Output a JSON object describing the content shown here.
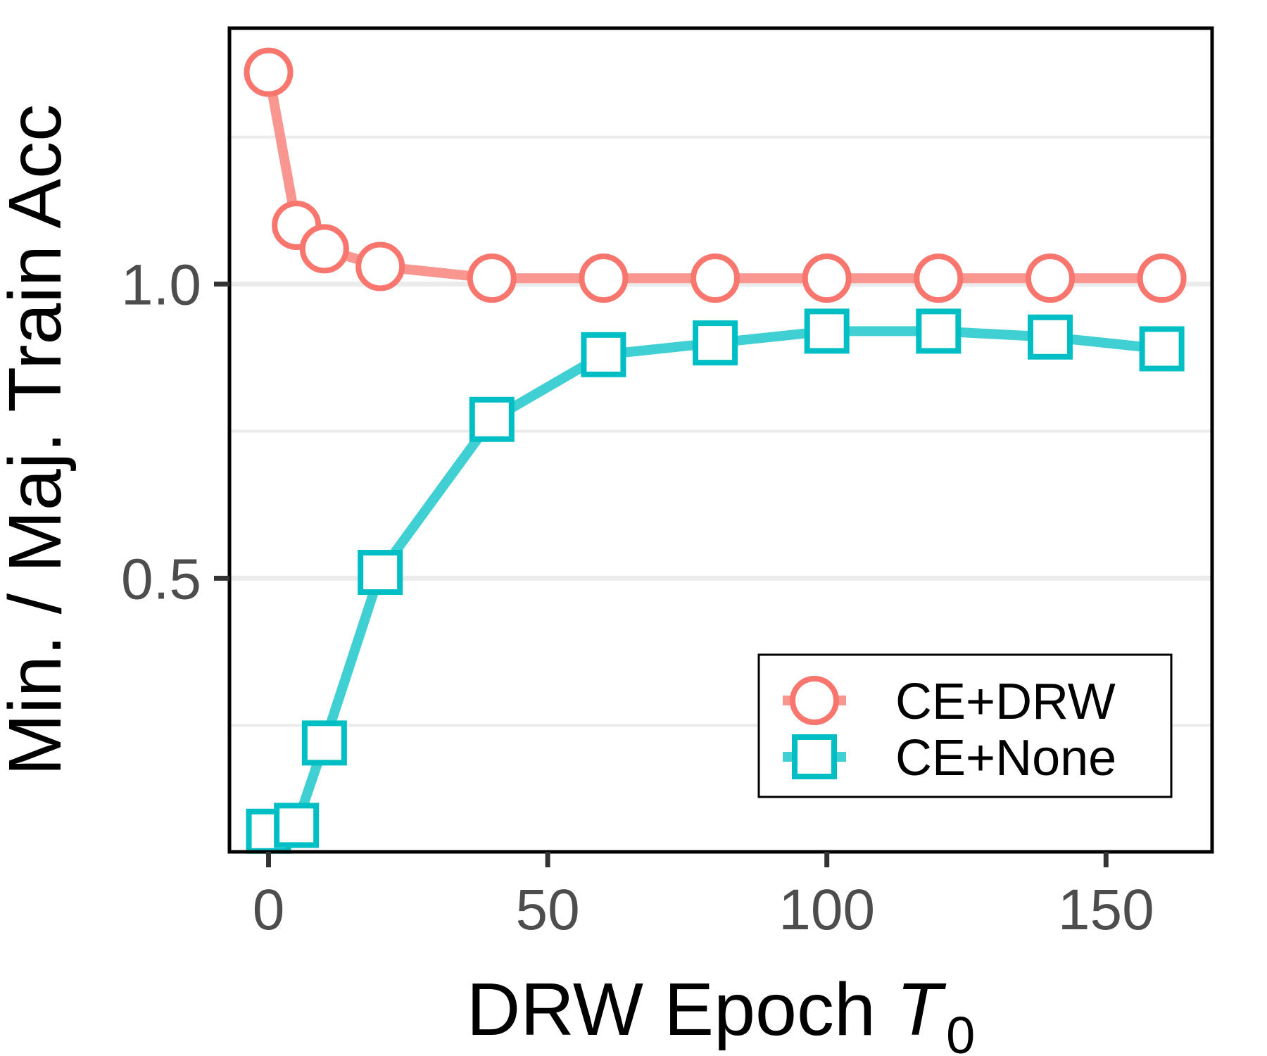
{
  "chart_data": {
    "type": "line",
    "xlabel": "DRW Epoch",
    "xlabel_italic": "T",
    "xlabel_subscript": "0",
    "ylabel": "Min. / Maj. Train Acc",
    "xlim": [
      -7,
      169
    ],
    "ylim": [
      0.035,
      1.435
    ],
    "x_ticks": [
      0,
      50,
      100,
      150
    ],
    "x_tick_labels": [
      "0",
      "50",
      "100",
      "150"
    ],
    "y_ticks": [
      0.5,
      1.0
    ],
    "y_tick_labels": [
      "0.5",
      "1.0"
    ],
    "y_minor_grid": [
      0.25,
      0.75,
      1.25
    ],
    "legend_position": "bottom-right",
    "series": [
      {
        "name": "CE+DRW",
        "marker": "circle",
        "color": "#F8766D",
        "line_color": "#F8968F",
        "x": [
          0,
          5,
          10,
          20,
          40,
          60,
          80,
          100,
          120,
          140,
          160
        ],
        "values": [
          1.36,
          1.1,
          1.06,
          1.03,
          1.01,
          1.01,
          1.01,
          1.01,
          1.01,
          1.01,
          1.01
        ]
      },
      {
        "name": "CE+None",
        "marker": "square",
        "color": "#00BFC4",
        "line_color": "#40CFD2",
        "x": [
          0,
          5,
          10,
          20,
          40,
          60,
          80,
          100,
          120,
          140,
          160
        ],
        "values": [
          0.07,
          0.08,
          0.22,
          0.51,
          0.77,
          0.88,
          0.9,
          0.92,
          0.92,
          0.91,
          0.89
        ]
      }
    ]
  }
}
